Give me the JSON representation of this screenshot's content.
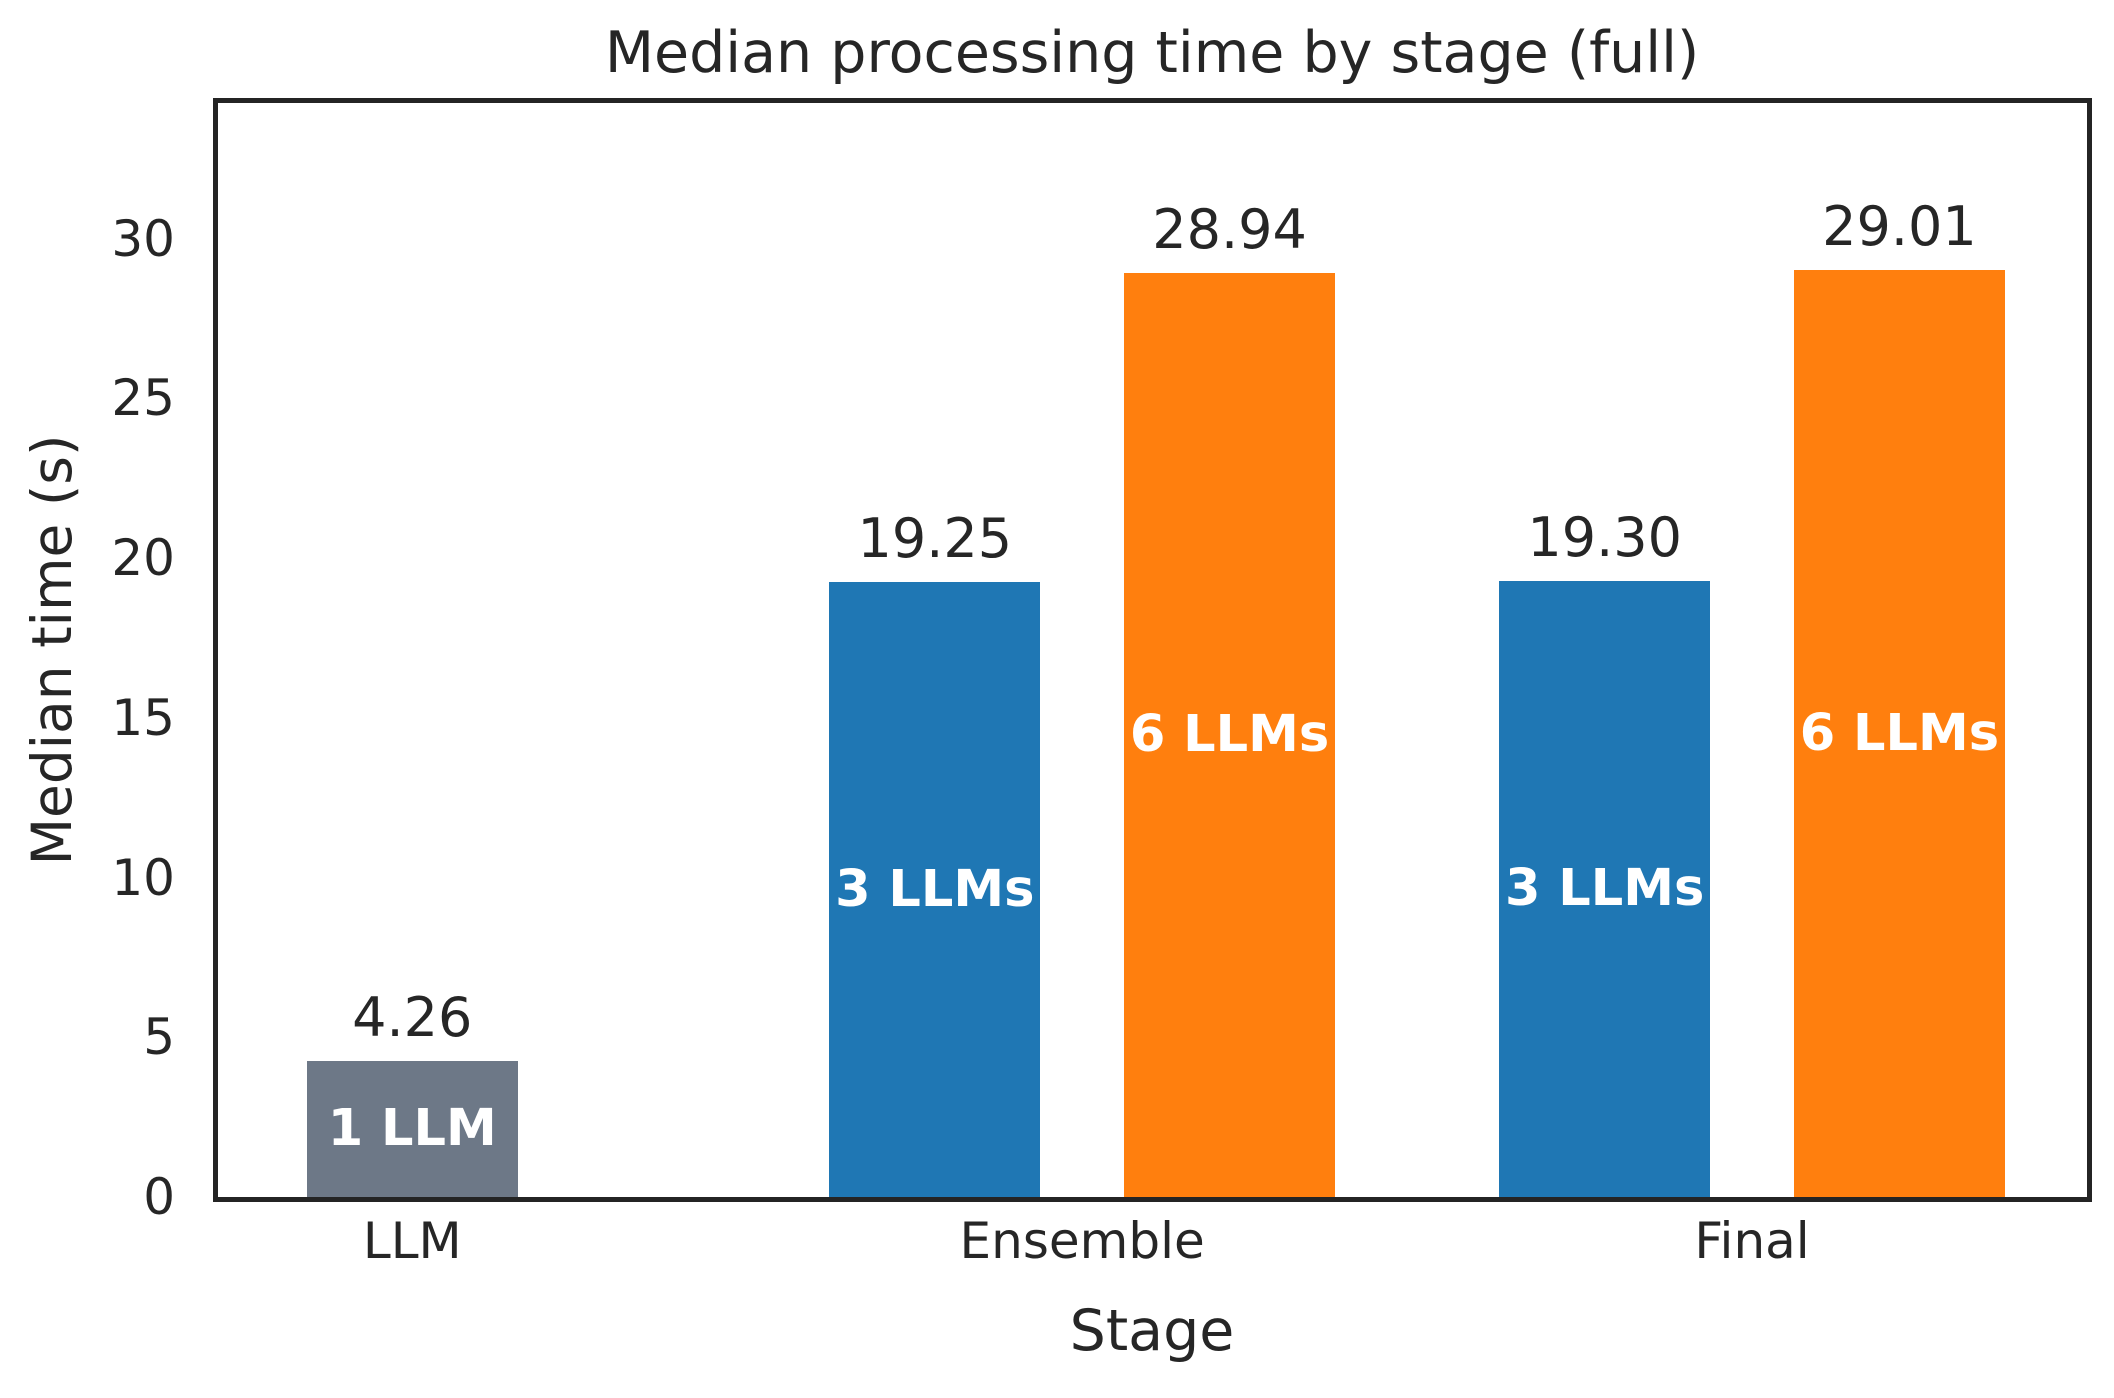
{
  "chart_data": {
    "type": "bar",
    "title": "Median processing time by stage (full)",
    "xlabel": "Stage",
    "ylabel": "Median time (s)",
    "categories": [
      "LLM",
      "Ensemble",
      "Final"
    ],
    "yticks": [
      "0",
      "5",
      "10",
      "15",
      "20",
      "25",
      "30"
    ],
    "ytick_values": [
      0,
      5,
      10,
      15,
      20,
      25,
      30
    ],
    "ylim": [
      0,
      34.25
    ],
    "xlim": [
      -0.29,
      2.5
    ],
    "bar_width": 0.315,
    "grid": false,
    "legend": false,
    "colors": {
      "single_llm": "#6d7887",
      "three_llms": "#1f77b4",
      "six_llms": "#ff7f0e",
      "text": "#262626",
      "spine": "#242424"
    },
    "bars": [
      {
        "category": "LLM",
        "x": 0,
        "value": 4.26,
        "value_label": "4.26",
        "bar_label": "1 LLM",
        "color": "#6d7887"
      },
      {
        "category": "Ensemble",
        "x": 0.78,
        "value": 19.25,
        "value_label": "19.25",
        "bar_label": "3 LLMs",
        "color": "#1f77b4"
      },
      {
        "category": "Ensemble",
        "x": 1.22,
        "value": 28.94,
        "value_label": "28.94",
        "bar_label": "6 LLMs",
        "color": "#ff7f0e"
      },
      {
        "category": "Final",
        "x": 1.78,
        "value": 19.3,
        "value_label": "19.30",
        "bar_label": "3 LLMs",
        "color": "#1f77b4"
      },
      {
        "category": "Final",
        "x": 2.22,
        "value": 29.01,
        "value_label": "29.01",
        "bar_label": "6 LLMs",
        "color": "#ff7f0e"
      }
    ]
  }
}
